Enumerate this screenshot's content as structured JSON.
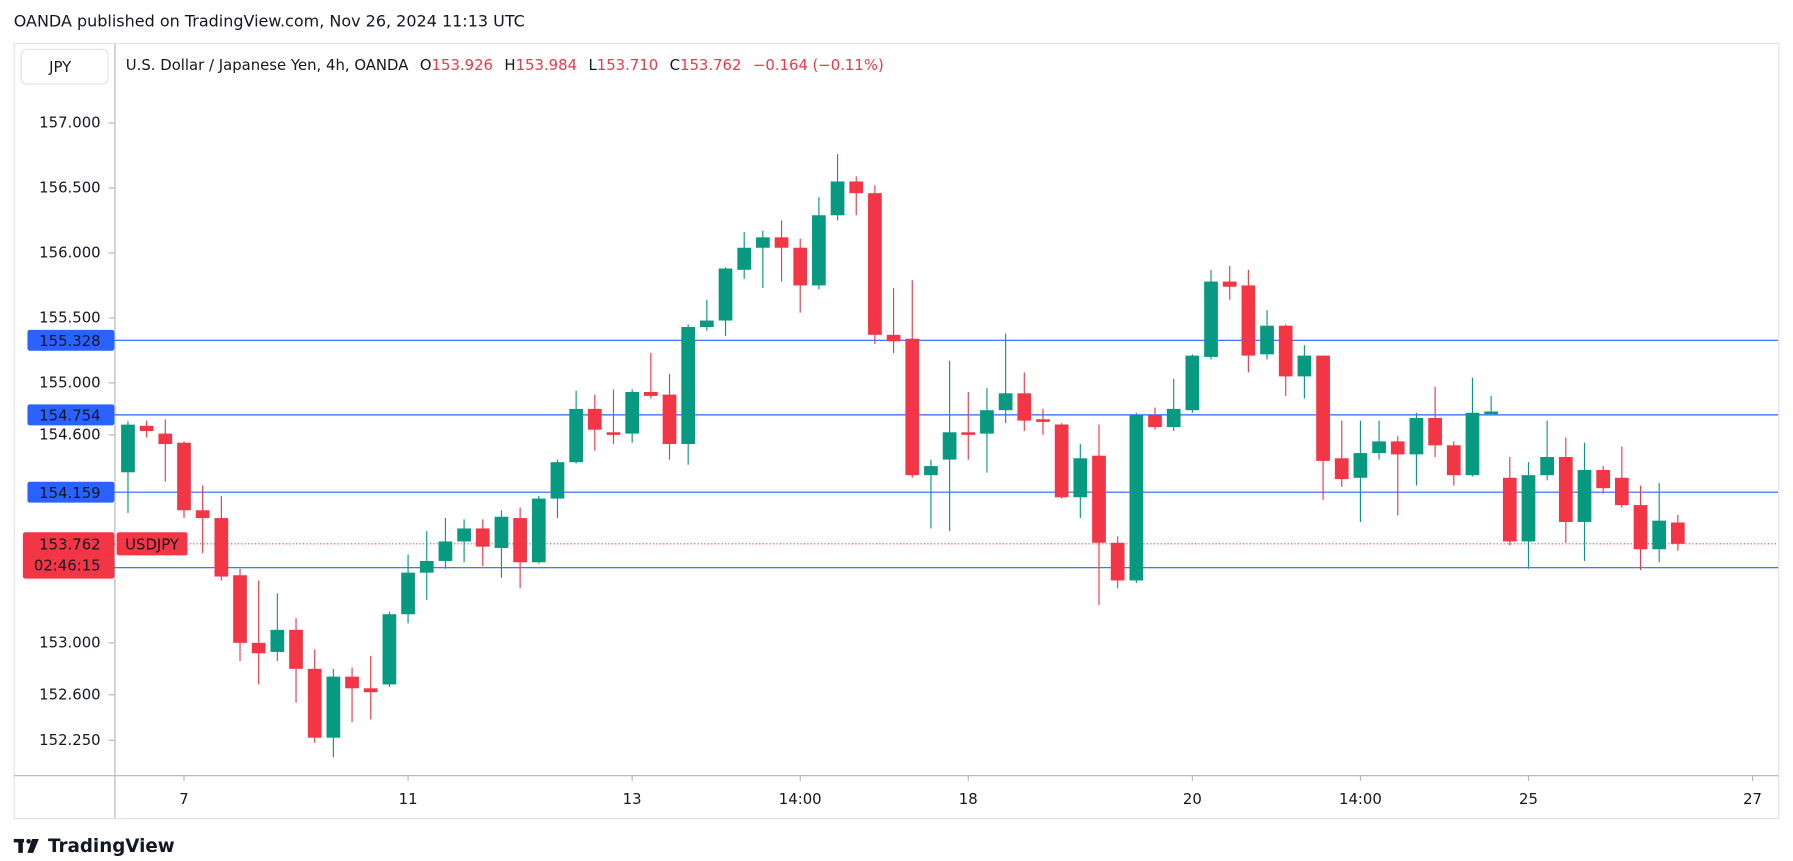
{
  "published": "OANDA published on TradingView.com, Nov 26, 2024 11:13 UTC",
  "symbol_box": "JPY",
  "header": {
    "symbol": "U.S. Dollar / Japanese Yen, 4h, OANDA",
    "ohlc": [
      {
        "key": "O",
        "value": "153.926"
      },
      {
        "key": "H",
        "value": "153.984"
      },
      {
        "key": "L",
        "value": "153.710"
      },
      {
        "key": "C",
        "value": "153.762"
      }
    ],
    "change": "−0.164",
    "change_pct": "(−0.11%)"
  },
  "logo": "TradingView",
  "chart_data": {
    "type": "candlestick",
    "up_color": "#089981",
    "down_color": "#f23645",
    "open": [
      154.312,
      154.67,
      154.61,
      154.54,
      154.02,
      153.96,
      153.52,
      153.0,
      152.93,
      153.1,
      152.8,
      152.27,
      152.74,
      152.65,
      152.68,
      153.22,
      153.54,
      153.63,
      153.78,
      153.88,
      153.73,
      153.96,
      153.62,
      154.11,
      154.39,
      154.8,
      154.62,
      154.61,
      154.93,
      154.91,
      154.53,
      155.43,
      155.48,
      155.87,
      156.04,
      156.12,
      156.04,
      155.75,
      156.29,
      156.55,
      156.46,
      155.37,
      155.34,
      154.29,
      154.41,
      154.62,
      154.61,
      154.79,
      154.92,
      154.72,
      154.68,
      154.12,
      154.44,
      153.77,
      153.48,
      154.75,
      154.66,
      154.79,
      155.2,
      155.78,
      155.75,
      155.22,
      155.44,
      155.05,
      155.21,
      154.42,
      154.27,
      154.46,
      154.55,
      154.45,
      154.73,
      154.52,
      154.29,
      154.76,
      154.27,
      153.78,
      154.29,
      154.43,
      153.93,
      154.33,
      154.27,
      154.06,
      153.72,
      153.926
    ],
    "high": [
      154.705,
      154.71,
      154.72,
      154.55,
      154.21,
      154.13,
      153.57,
      153.48,
      153.38,
      153.19,
      152.95,
      152.8,
      152.81,
      152.9,
      153.24,
      153.68,
      153.86,
      153.96,
      153.95,
      153.95,
      154.02,
      154.04,
      154.13,
      154.41,
      154.94,
      154.91,
      154.95,
      154.95,
      155.23,
      155.07,
      155.45,
      155.64,
      155.89,
      156.16,
      156.17,
      156.25,
      156.11,
      156.43,
      156.76,
      156.59,
      156.52,
      155.73,
      155.79,
      154.41,
      155.17,
      154.93,
      154.96,
      155.38,
      155.08,
      154.8,
      154.69,
      154.53,
      154.68,
      153.82,
      154.77,
      154.81,
      155.03,
      155.22,
      155.87,
      155.9,
      155.87,
      155.56,
      155.45,
      155.29,
      155.21,
      154.71,
      154.71,
      154.71,
      154.59,
      154.77,
      154.97,
      154.55,
      155.04,
      154.9,
      154.43,
      154.39,
      154.71,
      154.58,
      154.54,
      154.36,
      154.51,
      154.21,
      154.23,
      153.984
    ],
    "low": [
      154.0,
      154.58,
      154.24,
      153.96,
      153.69,
      153.48,
      152.86,
      152.68,
      152.86,
      152.54,
      152.23,
      152.12,
      152.39,
      152.41,
      152.66,
      153.15,
      153.33,
      153.57,
      153.62,
      153.59,
      153.5,
      153.42,
      153.61,
      153.96,
      154.38,
      154.48,
      154.53,
      154.54,
      154.88,
      154.41,
      154.37,
      155.4,
      155.36,
      155.8,
      155.73,
      155.78,
      155.54,
      155.72,
      156.25,
      156.29,
      155.3,
      155.23,
      154.27,
      153.88,
      153.86,
      154.41,
      154.31,
      154.69,
      154.63,
      154.6,
      154.11,
      153.96,
      153.29,
      153.42,
      153.46,
      154.64,
      154.63,
      154.77,
      155.18,
      155.64,
      155.08,
      155.18,
      154.9,
      154.88,
      154.1,
      154.2,
      153.93,
      154.41,
      153.98,
      154.21,
      154.43,
      154.21,
      154.28,
      154.75,
      153.75,
      153.57,
      154.25,
      153.77,
      153.63,
      154.15,
      154.04,
      153.56,
      153.62,
      153.71
    ],
    "close": [
      154.679,
      154.63,
      154.53,
      154.02,
      153.96,
      153.51,
      153.0,
      152.92,
      153.1,
      152.8,
      152.27,
      152.74,
      152.65,
      152.62,
      153.22,
      153.54,
      153.63,
      153.78,
      153.88,
      153.74,
      153.97,
      153.62,
      154.11,
      154.39,
      154.8,
      154.64,
      154.6,
      154.93,
      154.9,
      154.53,
      155.43,
      155.48,
      155.88,
      156.04,
      156.12,
      156.04,
      155.75,
      156.29,
      156.55,
      156.46,
      155.37,
      155.32,
      154.29,
      154.36,
      154.62,
      154.6,
      154.79,
      154.92,
      154.71,
      154.7,
      154.12,
      154.42,
      153.77,
      153.48,
      154.75,
      154.66,
      154.8,
      155.21,
      155.78,
      155.74,
      155.21,
      155.44,
      155.05,
      155.21,
      154.4,
      154.26,
      154.46,
      154.55,
      154.45,
      154.73,
      154.52,
      154.29,
      154.77,
      154.78,
      153.78,
      154.29,
      154.43,
      153.93,
      154.33,
      154.19,
      154.06,
      153.72,
      153.94,
      153.762
    ],
    "xlim": [
      -0.73,
      88.37
    ],
    "xticks": [
      {
        "value": 3,
        "label": "7"
      },
      {
        "value": 15,
        "label": "11"
      },
      {
        "value": 27,
        "label": "13"
      },
      {
        "value": 36,
        "label": "14:00"
      },
      {
        "value": 45,
        "label": "18"
      },
      {
        "value": 57,
        "label": "20"
      },
      {
        "value": 66,
        "label": "14:00"
      },
      {
        "value": 75,
        "label": "25"
      },
      {
        "value": 87,
        "label": "27"
      }
    ],
    "ylim": [
      151.982,
      157.607
    ],
    "yticks": [
      {
        "value": 152.25,
        "label": "152.250"
      },
      {
        "value": 152.6,
        "label": "152.600"
      },
      {
        "value": 153,
        "label": "153.000"
      },
      {
        "value": 154.6,
        "label": "154.600"
      },
      {
        "value": 155,
        "label": "155.000"
      },
      {
        "value": 155.5,
        "label": "155.500"
      },
      {
        "value": 156,
        "label": "156.000"
      },
      {
        "value": 156.5,
        "label": "156.500"
      },
      {
        "value": 157,
        "label": "157.000"
      }
    ],
    "hlines": [
      155.328,
      154.754,
      154.159,
      153.578
    ],
    "hline_color": "#2962ff",
    "last_price": {
      "value": 153.762,
      "name": "USDJPY",
      "countdown": "02:46:15"
    }
  }
}
